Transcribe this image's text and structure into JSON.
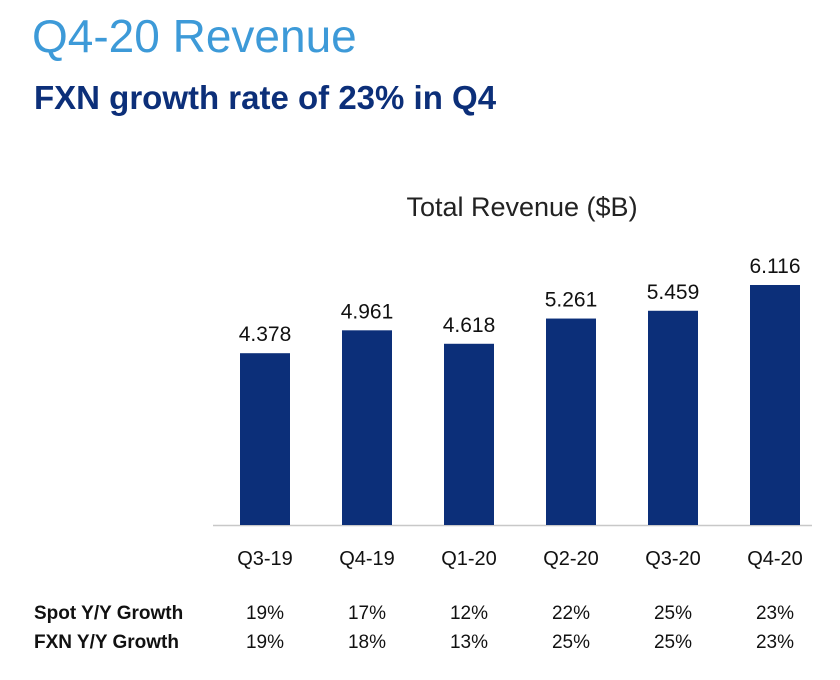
{
  "slide": {
    "title": "Q4-20 Revenue",
    "subtitle": "FXN growth rate of 23% in Q4"
  },
  "chart_data": {
    "type": "bar",
    "title": "Total Revenue ($B)",
    "xlabel": "",
    "ylabel": "",
    "categories": [
      "Q3-19",
      "Q4-19",
      "Q1-20",
      "Q2-20",
      "Q3-20",
      "Q4-20"
    ],
    "values": [
      4.378,
      4.961,
      4.618,
      5.261,
      5.459,
      6.116
    ],
    "value_labels": [
      "4.378",
      "4.961",
      "4.618",
      "5.261",
      "5.459",
      "6.116"
    ],
    "ylim": [
      0,
      6.6
    ],
    "grid": false,
    "bar_color": "#0c2f79"
  },
  "growth_table": {
    "rows": [
      {
        "label": "Spot Y/Y Growth",
        "values": [
          "19%",
          "17%",
          "12%",
          "22%",
          "25%",
          "23%"
        ]
      },
      {
        "label": "FXN Y/Y Growth",
        "values": [
          "19%",
          "18%",
          "13%",
          "25%",
          "25%",
          "23%"
        ]
      }
    ]
  },
  "colors": {
    "title": "#3d9ad8",
    "subtitle": "#0c2f79",
    "bars": "#0c2f79",
    "axis": "#c8c8c8",
    "text": "#111111"
  }
}
